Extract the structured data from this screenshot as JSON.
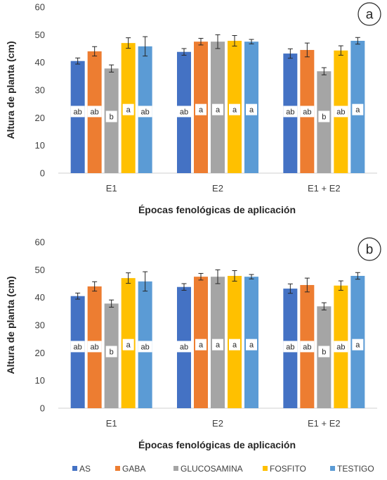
{
  "panels": [
    {
      "letter": "a",
      "chart_data": {
        "type": "bar",
        "categories": [
          "E1",
          "E2",
          "E1 + E2"
        ],
        "xlabel": "Épocas fenológicas de aplicación",
        "ylabel": "Altura de planta (cm)",
        "ylim": [
          0,
          60
        ],
        "yticks": [
          0,
          10,
          20,
          30,
          40,
          50,
          60
        ],
        "grid": false,
        "legend_position": "none",
        "series": [
          {
            "name": "AS",
            "color": "#4472C4",
            "values": [
              40.5,
              43.8,
              43.2
            ],
            "errors": [
              1.1,
              1.2,
              1.7
            ],
            "letters": [
              "ab",
              "ab",
              "ab"
            ]
          },
          {
            "name": "GABA",
            "color": "#ED7D31",
            "values": [
              44.0,
              47.5,
              44.5
            ],
            "errors": [
              1.7,
              1.2,
              2.5
            ],
            "letters": [
              "ab",
              "a",
              "ab"
            ]
          },
          {
            "name": "GLUCOSAMINA",
            "color": "#A5A5A5",
            "values": [
              37.8,
              47.5,
              36.8
            ],
            "errors": [
              1.3,
              2.5,
              1.3
            ],
            "letters": [
              "b",
              "a",
              "b"
            ]
          },
          {
            "name": "FOSFITO",
            "color": "#FFC000",
            "values": [
              47.0,
              47.8,
              44.3
            ],
            "errors": [
              1.9,
              1.9,
              1.7
            ],
            "letters": [
              "a",
              "a",
              "ab"
            ]
          },
          {
            "name": "TESTIGO",
            "color": "#5B9BD5",
            "values": [
              45.8,
              47.5,
              47.8
            ],
            "errors": [
              3.5,
              0.8,
              1.2
            ],
            "letters": [
              "ab",
              "a",
              "a"
            ]
          }
        ]
      }
    },
    {
      "letter": "b",
      "chart_data": {
        "type": "bar",
        "categories": [
          "E1",
          "E2",
          "E1 + E2"
        ],
        "xlabel": "Épocas fenológicas de aplicación",
        "ylabel": "Altura de planta (cm)",
        "ylim": [
          0,
          60
        ],
        "yticks": [
          0,
          10,
          20,
          30,
          40,
          50,
          60
        ],
        "grid": false,
        "legend_position": "bottom",
        "series": [
          {
            "name": "AS",
            "color": "#4472C4",
            "values": [
              40.5,
              43.8,
              43.2
            ],
            "errors": [
              1.1,
              1.2,
              1.7
            ],
            "letters": [
              "ab",
              "ab",
              "ab"
            ]
          },
          {
            "name": "GABA",
            "color": "#ED7D31",
            "values": [
              44.0,
              47.5,
              44.5
            ],
            "errors": [
              1.7,
              1.2,
              2.5
            ],
            "letters": [
              "ab",
              "a",
              "ab"
            ]
          },
          {
            "name": "GLUCOSAMINA",
            "color": "#A5A5A5",
            "values": [
              37.8,
              47.5,
              36.8
            ],
            "errors": [
              1.3,
              2.5,
              1.3
            ],
            "letters": [
              "b",
              "a",
              "b"
            ]
          },
          {
            "name": "FOSFITO",
            "color": "#FFC000",
            "values": [
              47.0,
              47.8,
              44.3
            ],
            "errors": [
              1.9,
              1.9,
              1.7
            ],
            "letters": [
              "a",
              "a",
              "ab"
            ]
          },
          {
            "name": "TESTIGO",
            "color": "#5B9BD5",
            "values": [
              45.8,
              47.5,
              47.8
            ],
            "errors": [
              3.5,
              0.8,
              1.2
            ],
            "letters": [
              "ab",
              "a",
              "a"
            ]
          }
        ]
      }
    }
  ],
  "legend": {
    "items": [
      {
        "name": "AS",
        "color": "#4472C4",
        "icon": "square-marker"
      },
      {
        "name": "GABA",
        "color": "#ED7D31",
        "icon": "square-marker"
      },
      {
        "name": "GLUCOSAMINA",
        "color": "#A5A5A5",
        "icon": "square-marker"
      },
      {
        "name": "FOSFITO",
        "color": "#FFC000",
        "icon": "square-marker"
      },
      {
        "name": "TESTIGO",
        "color": "#5B9BD5",
        "icon": "square-marker"
      }
    ]
  }
}
